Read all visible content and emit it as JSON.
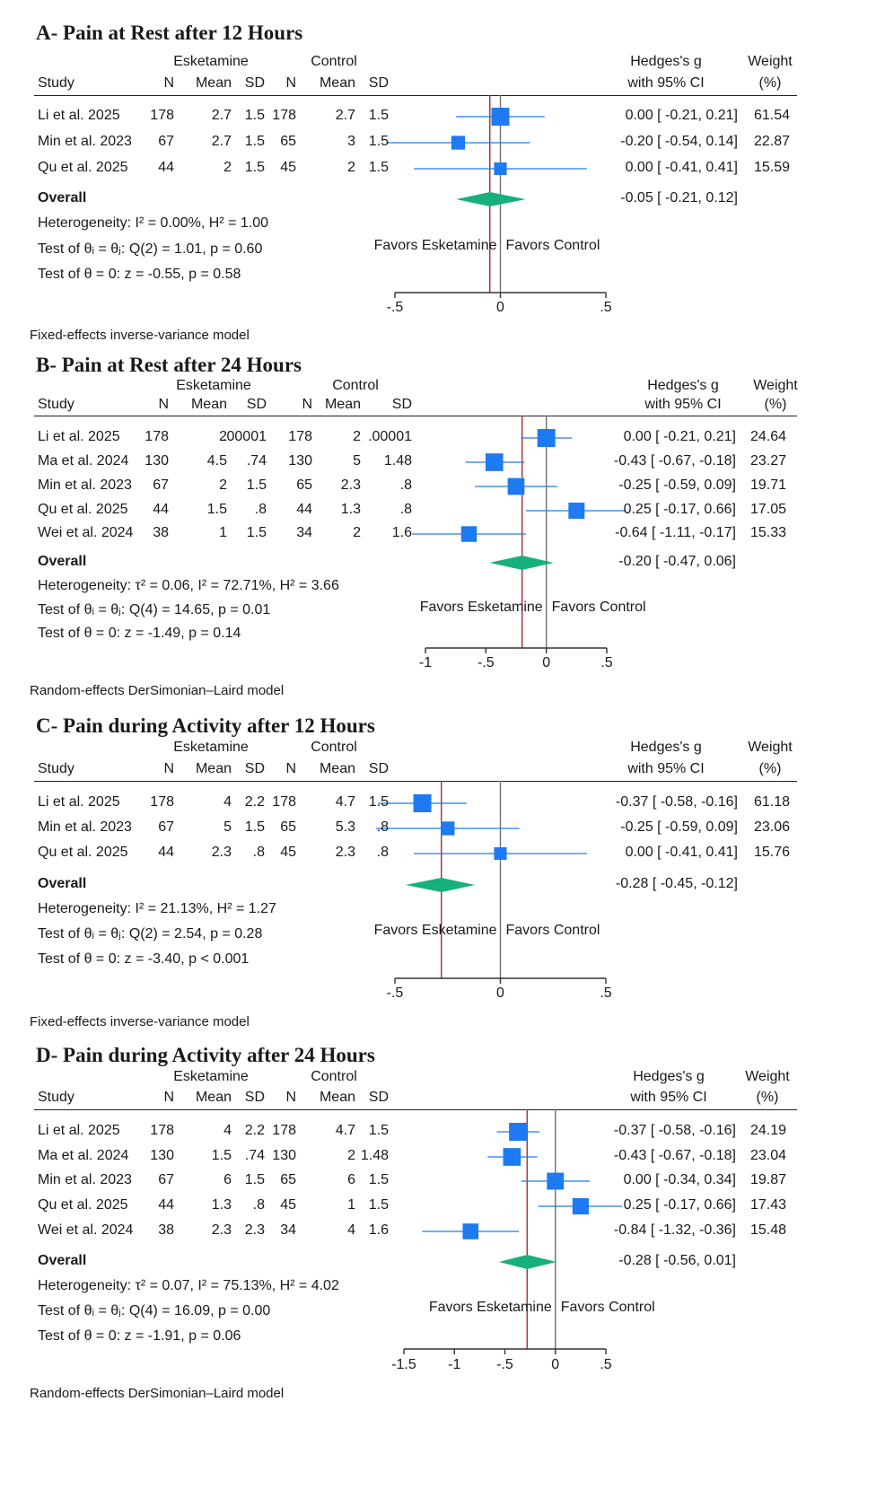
{
  "chart_data": [
    {
      "type": "forest",
      "title": "A- Pain at Rest after 12 Hours",
      "group1": "Esketamine",
      "group2": "Control",
      "columns": {
        "study": "Study",
        "n": "N",
        "mean": "Mean",
        "sd": "SD",
        "effect": "Hedges's g",
        "ci": "with 95% CI",
        "weight": "Weight",
        "weight_unit": "(%)"
      },
      "rows": [
        {
          "study": "Li et al. 2025",
          "n1": "178",
          "m1": "2.7",
          "sd1": "1.5",
          "n2": "178",
          "m2": "2.7",
          "sd2": "1.5",
          "g": 0.0,
          "lo": -0.21,
          "hi": 0.21,
          "ci_text": "0.00 [ -0.21,  0.21]",
          "weight": "61.54"
        },
        {
          "study": "Min et al. 2023",
          "n1": "67",
          "m1": "2.7",
          "sd1": "1.5",
          "n2": "65",
          "m2": "3",
          "sd2": "1.5",
          "g": -0.2,
          "lo": -0.54,
          "hi": 0.14,
          "ci_text": "-0.20 [ -0.54,  0.14]",
          "weight": "22.87"
        },
        {
          "study": "Qu et al. 2025",
          "n1": "44",
          "m1": "2",
          "sd1": "1.5",
          "n2": "45",
          "m2": "2",
          "sd2": "1.5",
          "g": 0.0,
          "lo": -0.41,
          "hi": 0.41,
          "ci_text": "0.00 [ -0.41,  0.41]",
          "weight": "15.59"
        }
      ],
      "overall": {
        "label": "Overall",
        "g": -0.05,
        "lo": -0.21,
        "hi": 0.12,
        "ci_text": "-0.05 [ -0.21,  0.12]"
      },
      "stats": [
        "Heterogeneity: I² = 0.00%, H² = 1.00",
        "Test of θᵢ = θⱼ: Q(2) = 1.01, p = 0.60",
        "Test of θ = 0: z = -0.55, p = 0.58"
      ],
      "favors_left": "Favors Esketamine",
      "favors_right": "Favors Control",
      "xlim": [
        -0.5,
        0.5
      ],
      "ticks": [
        -0.5,
        0,
        0.5
      ],
      "tick_labels": [
        "-.5",
        "0",
        ".5"
      ],
      "model": "Fixed-effects inverse-variance model"
    },
    {
      "type": "forest",
      "title": "B- Pain at Rest after 24 Hours",
      "group1": "Esketamine",
      "group2": "Control",
      "columns": {
        "study": "Study",
        "n": "N",
        "mean": "Mean",
        "sd": "SD",
        "effect": "Hedges's g",
        "ci": "with 95% CI",
        "weight": "Weight",
        "weight_unit": "(%)"
      },
      "rows": [
        {
          "study": "Li et al. 2025",
          "n1": "178",
          "m1": "2",
          "sd1": ".00001",
          "n2": "178",
          "m2": "2",
          "sd2": ".00001",
          "g": 0.0,
          "lo": -0.21,
          "hi": 0.21,
          "ci_text": "0.00 [ -0.21,  0.21]",
          "weight": "24.64"
        },
        {
          "study": "Ma et al. 2024",
          "n1": "130",
          "m1": "4.5",
          "sd1": ".74",
          "n2": "130",
          "m2": "5",
          "sd2": "1.48",
          "g": -0.43,
          "lo": -0.67,
          "hi": -0.18,
          "ci_text": "-0.43 [ -0.67, -0.18]",
          "weight": "23.27"
        },
        {
          "study": "Min et al. 2023",
          "n1": "67",
          "m1": "2",
          "sd1": "1.5",
          "n2": "65",
          "m2": "2.3",
          "sd2": ".8",
          "g": -0.25,
          "lo": -0.59,
          "hi": 0.09,
          "ci_text": "-0.25 [ -0.59,  0.09]",
          "weight": "19.71"
        },
        {
          "study": "Qu et al. 2025",
          "n1": "44",
          "m1": "1.5",
          "sd1": ".8",
          "n2": "44",
          "m2": "1.3",
          "sd2": ".8",
          "g": 0.25,
          "lo": -0.17,
          "hi": 0.66,
          "ci_text": "0.25 [ -0.17,  0.66]",
          "weight": "17.05"
        },
        {
          "study": "Wei et al. 2024",
          "n1": "38",
          "m1": "1",
          "sd1": "1.5",
          "n2": "34",
          "m2": "2",
          "sd2": "1.6",
          "g": -0.64,
          "lo": -1.11,
          "hi": -0.17,
          "ci_text": "-0.64 [ -1.11, -0.17]",
          "weight": "15.33"
        }
      ],
      "overall": {
        "label": "Overall",
        "g": -0.2,
        "lo": -0.47,
        "hi": 0.06,
        "ci_text": "-0.20 [ -0.47,  0.06]"
      },
      "stats": [
        "Heterogeneity: τ² = 0.06, I² = 72.71%, H² = 3.66",
        "Test of θᵢ = θⱼ: Q(4) = 14.65, p = 0.01",
        "Test of θ = 0: z = -1.49, p = 0.14"
      ],
      "favors_left": "Favors Esketamine",
      "favors_right": "Favors Control",
      "xlim": [
        -1,
        0.5
      ],
      "ticks": [
        -1,
        -0.5,
        0,
        0.5
      ],
      "tick_labels": [
        "-1",
        "-.5",
        "0",
        ".5"
      ],
      "model": "Random-effects DerSimonian–Laird model"
    },
    {
      "type": "forest",
      "title": "C- Pain during Activity after 12 Hours",
      "group1": "Esketamine",
      "group2": "Control",
      "columns": {
        "study": "Study",
        "n": "N",
        "mean": "Mean",
        "sd": "SD",
        "effect": "Hedges's g",
        "ci": "with 95% CI",
        "weight": "Weight",
        "weight_unit": "(%)"
      },
      "rows": [
        {
          "study": "Li et al. 2025",
          "n1": "178",
          "m1": "4",
          "sd1": "2.2",
          "n2": "178",
          "m2": "4.7",
          "sd2": "1.5",
          "g": -0.37,
          "lo": -0.58,
          "hi": -0.16,
          "ci_text": "-0.37 [ -0.58, -0.16]",
          "weight": "61.18"
        },
        {
          "study": "Min et al. 2023",
          "n1": "67",
          "m1": "5",
          "sd1": "1.5",
          "n2": "65",
          "m2": "5.3",
          "sd2": ".8",
          "g": -0.25,
          "lo": -0.59,
          "hi": 0.09,
          "ci_text": "-0.25 [ -0.59,  0.09]",
          "weight": "23.06"
        },
        {
          "study": "Qu et al. 2025",
          "n1": "44",
          "m1": "2.3",
          "sd1": ".8",
          "n2": "45",
          "m2": "2.3",
          "sd2": ".8",
          "g": 0.0,
          "lo": -0.41,
          "hi": 0.41,
          "ci_text": "0.00 [ -0.41,  0.41]",
          "weight": "15.76"
        }
      ],
      "overall": {
        "label": "Overall",
        "g": -0.28,
        "lo": -0.45,
        "hi": -0.12,
        "ci_text": "-0.28 [ -0.45, -0.12]"
      },
      "stats": [
        "Heterogeneity: I² = 21.13%, H² = 1.27",
        "Test of θᵢ = θⱼ: Q(2) = 2.54, p = 0.28",
        "Test of θ = 0: z = -3.40, p < 0.001"
      ],
      "favors_left": "Favors Esketamine",
      "favors_right": "Favors Control",
      "xlim": [
        -0.5,
        0.5
      ],
      "ticks": [
        -0.5,
        0,
        0.5
      ],
      "tick_labels": [
        "-.5",
        "0",
        ".5"
      ],
      "model": "Fixed-effects inverse-variance model"
    },
    {
      "type": "forest",
      "title": "D- Pain during Activity after 24 Hours",
      "group1": "Esketamine",
      "group2": "Control",
      "columns": {
        "study": "Study",
        "n": "N",
        "mean": "Mean",
        "sd": "SD",
        "effect": "Hedges's g",
        "ci": "with 95% CI",
        "weight": "Weight",
        "weight_unit": "(%)"
      },
      "rows": [
        {
          "study": "Li et al. 2025",
          "n1": "178",
          "m1": "4",
          "sd1": "2.2",
          "n2": "178",
          "m2": "4.7",
          "sd2": "1.5",
          "g": -0.37,
          "lo": -0.58,
          "hi": -0.16,
          "ci_text": "-0.37 [ -0.58, -0.16]",
          "weight": "24.19"
        },
        {
          "study": "Ma et al. 2024",
          "n1": "130",
          "m1": "1.5",
          "sd1": ".74",
          "n2": "130",
          "m2": "2",
          "sd2": "1.48",
          "g": -0.43,
          "lo": -0.67,
          "hi": -0.18,
          "ci_text": "-0.43 [ -0.67, -0.18]",
          "weight": "23.04"
        },
        {
          "study": "Min et al. 2023",
          "n1": "67",
          "m1": "6",
          "sd1": "1.5",
          "n2": "65",
          "m2": "6",
          "sd2": "1.5",
          "g": 0.0,
          "lo": -0.34,
          "hi": 0.34,
          "ci_text": "0.00 [ -0.34,  0.34]",
          "weight": "19.87"
        },
        {
          "study": "Qu et al. 2025",
          "n1": "44",
          "m1": "1.3",
          "sd1": ".8",
          "n2": "45",
          "m2": "1",
          "sd2": "1.5",
          "g": 0.25,
          "lo": -0.17,
          "hi": 0.66,
          "ci_text": "0.25 [ -0.17,  0.66]",
          "weight": "17.43"
        },
        {
          "study": "Wei et al. 2024",
          "n1": "38",
          "m1": "2.3",
          "sd1": "2.3",
          "n2": "34",
          "m2": "4",
          "sd2": "1.6",
          "g": -0.84,
          "lo": -1.32,
          "hi": -0.36,
          "ci_text": "-0.84 [ -1.32, -0.36]",
          "weight": "15.48"
        }
      ],
      "overall": {
        "label": "Overall",
        "g": -0.28,
        "lo": -0.56,
        "hi": 0.01,
        "ci_text": "-0.28 [ -0.56,  0.01]"
      },
      "stats": [
        "Heterogeneity: τ² = 0.07, I² = 75.13%, H² = 4.02",
        "Test of θᵢ = θⱼ: Q(4) = 16.09, p = 0.00",
        "Test of θ = 0: z = -1.91, p = 0.06"
      ],
      "favors_left": "Favors Esketamine",
      "favors_right": "Favors Control",
      "xlim": [
        -1.5,
        0.5
      ],
      "ticks": [
        -1.5,
        -1,
        -0.5,
        0,
        0.5
      ],
      "tick_labels": [
        "-1.5",
        "-1",
        "-.5",
        "0",
        ".5"
      ],
      "model": "Random-effects DerSimonian–Laird model"
    }
  ],
  "colors": {
    "marker": "#1e7af0",
    "diamond": "#17b07a",
    "overall_line": "#a03030",
    "null_line": "#707070",
    "axis": "#333333"
  }
}
